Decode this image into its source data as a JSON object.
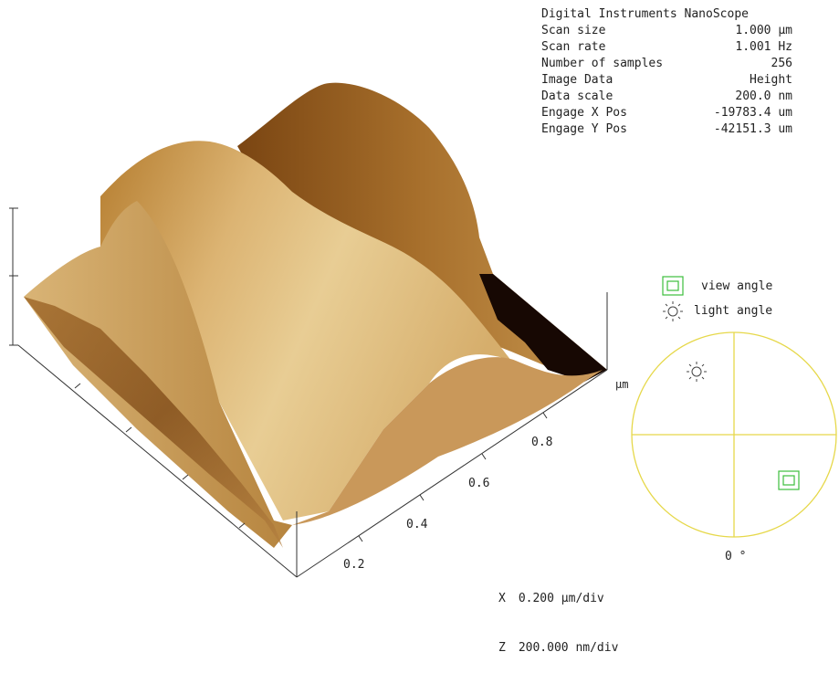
{
  "scan_info": {
    "instrument": "Digital Instruments NanoScope",
    "rows": [
      {
        "label": "Scan size",
        "value": "1.000 µm"
      },
      {
        "label": "Scan rate",
        "value": "1.001 Hz"
      },
      {
        "label": "Number of samples",
        "value": "256"
      },
      {
        "label": "Image Data",
        "value": "Height"
      },
      {
        "label": "Data scale",
        "value": "200.0 nm"
      },
      {
        "label": "Engage X Pos",
        "value": "-19783.4 um"
      },
      {
        "label": "Engage Y Pos",
        "value": "-42151.3 um"
      }
    ]
  },
  "legend": {
    "view_angle_label": "view angle",
    "light_angle_label": "light angle",
    "circle_angle_label": "0 °",
    "view_icon": "square-target-icon",
    "light_icon": "sun-icon"
  },
  "axis": {
    "unit_label": "µm",
    "ticks": [
      "0.2",
      "0.4",
      "0.6",
      "0.8"
    ]
  },
  "scale_note": {
    "x_prefix": "X",
    "x_value": "0.200 µm/div",
    "z_prefix": "Z",
    "z_value": "200.000 nm/div"
  },
  "colors": {
    "surface_light": "#e8c98f",
    "surface_mid": "#c08a3a",
    "surface_dark": "#5a2c0a",
    "shadow": "#1a0a04",
    "circle": "#e6d84a",
    "legend_green": "#3cbf3c"
  }
}
